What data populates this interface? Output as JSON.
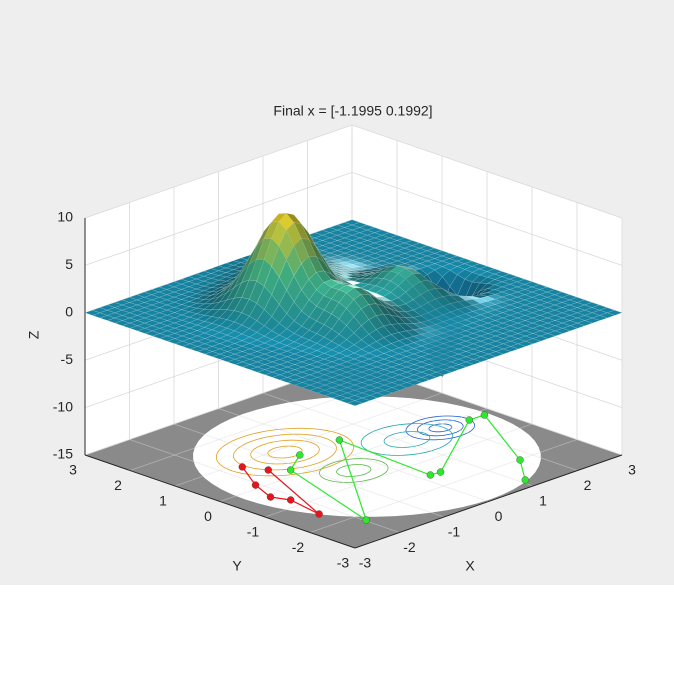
{
  "chart_data": {
    "type": "scatter3d",
    "title": "Final x = [-1.1995 0.1992]",
    "xlabel": "X",
    "ylabel": "Y",
    "zlabel": "Z",
    "xlim": [
      -3,
      3
    ],
    "ylim": [
      -3,
      3
    ],
    "zlim": [
      -15,
      10
    ],
    "xticks": [
      -3,
      -2,
      -1,
      0,
      1,
      2,
      3
    ],
    "yticks": [
      -3,
      -2,
      -1,
      0,
      1,
      2,
      3
    ],
    "zticks": [
      -15,
      -10,
      -5,
      0,
      5,
      10
    ],
    "grid": true,
    "series": [
      {
        "color": "#e8141c",
        "x": [
          -1.63,
          -2.07,
          -2.29,
          -2.16,
          -2.3,
          -1.44
        ],
        "values": [
          0.86,
          0.13,
          -0.42,
          -0.74,
          -1.51,
          0.47
        ]
      },
      {
        "color": "#2ee82e",
        "x": [
          -0.6,
          -1.19,
          -1.97,
          0.33,
          0.21,
          0.42,
          2.43,
          2.76,
          1.7,
          1.11
        ],
        "values": [
          0.6,
          0.22,
          -2.23,
          0.64,
          -1.5,
          -1.52,
          -0.17,
          -0.18,
          -2.02,
          -2.72
        ]
      }
    ]
  }
}
